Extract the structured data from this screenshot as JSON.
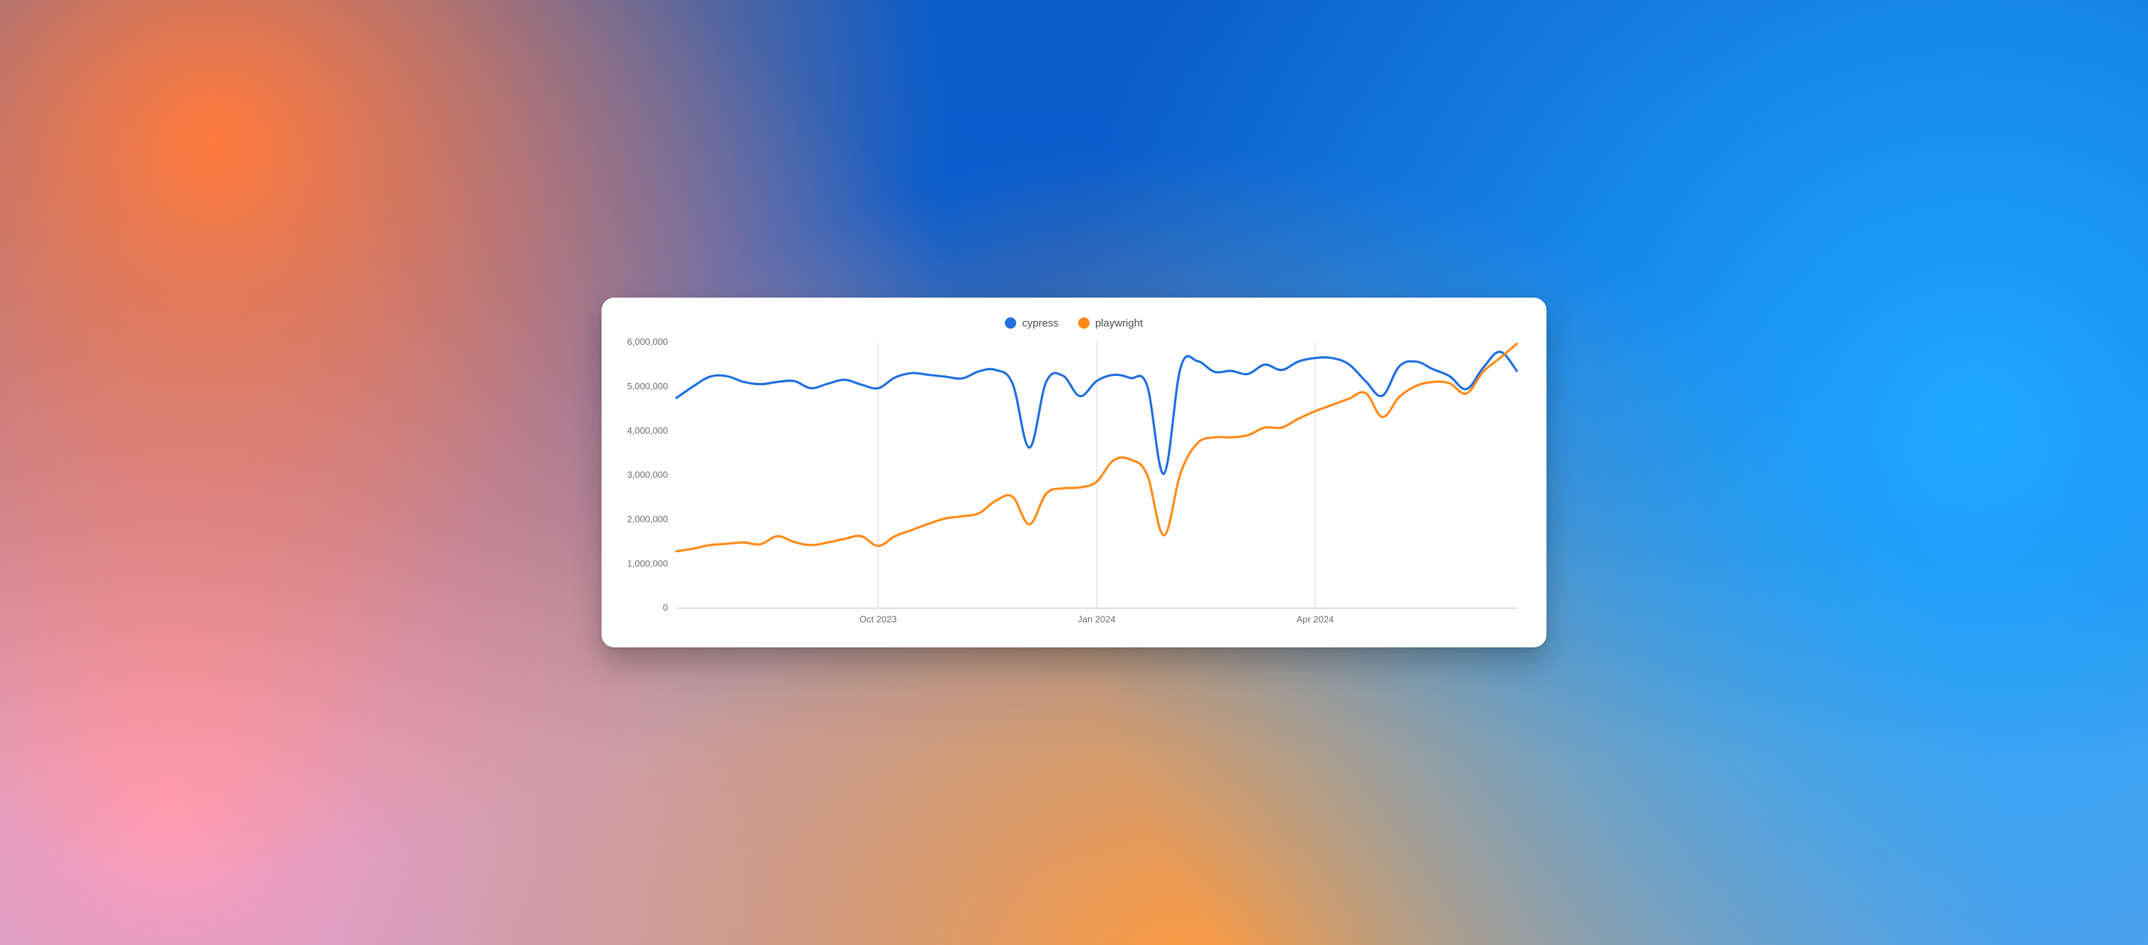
{
  "chart": {
    "type": "line",
    "background_color": "#ffffff",
    "grid_color": "#d7d7d7",
    "baseline_color": "#bfbfbf",
    "axis_text_color": "#6b6b6b",
    "axis_fontsize": 13,
    "legend_fontsize": 15,
    "line_width": 3.2,
    "y": {
      "min": 0,
      "max": 6000000,
      "ticks": [
        0,
        1000000,
        2000000,
        3000000,
        4000000,
        5000000,
        6000000
      ],
      "tick_labels": [
        "0",
        "1,000,000",
        "2,000,000",
        "3,000,000",
        "4,000,000",
        "5,000,000",
        "6,000,000"
      ]
    },
    "x": {
      "min": 0,
      "max": 50,
      "grid_at": [
        12,
        25,
        38
      ],
      "grid_labels": [
        "Oct 2023",
        "Jan 2024",
        "Apr 2024"
      ]
    },
    "series": [
      {
        "name": "cypress",
        "color": "#1f6fe0",
        "values": [
          4740000,
          5000000,
          5220000,
          5230000,
          5100000,
          5050000,
          5100000,
          5120000,
          4960000,
          5060000,
          5150000,
          5040000,
          4960000,
          5200000,
          5300000,
          5260000,
          5220000,
          5180000,
          5340000,
          5370000,
          5060000,
          3620000,
          5100000,
          5240000,
          4780000,
          5120000,
          5260000,
          5190000,
          5020000,
          3030000,
          5430000,
          5570000,
          5330000,
          5350000,
          5280000,
          5490000,
          5370000,
          5560000,
          5640000,
          5640000,
          5500000,
          5120000,
          4790000,
          5450000,
          5560000,
          5390000,
          5230000,
          4940000,
          5420000,
          5780000,
          5350000
        ]
      },
      {
        "name": "playwright",
        "color": "#ff8a18",
        "values": [
          1280000,
          1340000,
          1420000,
          1450000,
          1480000,
          1440000,
          1620000,
          1490000,
          1420000,
          1480000,
          1560000,
          1620000,
          1400000,
          1620000,
          1760000,
          1900000,
          2020000,
          2070000,
          2140000,
          2420000,
          2510000,
          1890000,
          2580000,
          2700000,
          2720000,
          2850000,
          3330000,
          3350000,
          3010000,
          1640000,
          3050000,
          3720000,
          3850000,
          3850000,
          3900000,
          4070000,
          4070000,
          4270000,
          4440000,
          4580000,
          4720000,
          4850000,
          4310000,
          4760000,
          5010000,
          5100000,
          5070000,
          4840000,
          5330000,
          5640000,
          5960000
        ]
      }
    ]
  }
}
